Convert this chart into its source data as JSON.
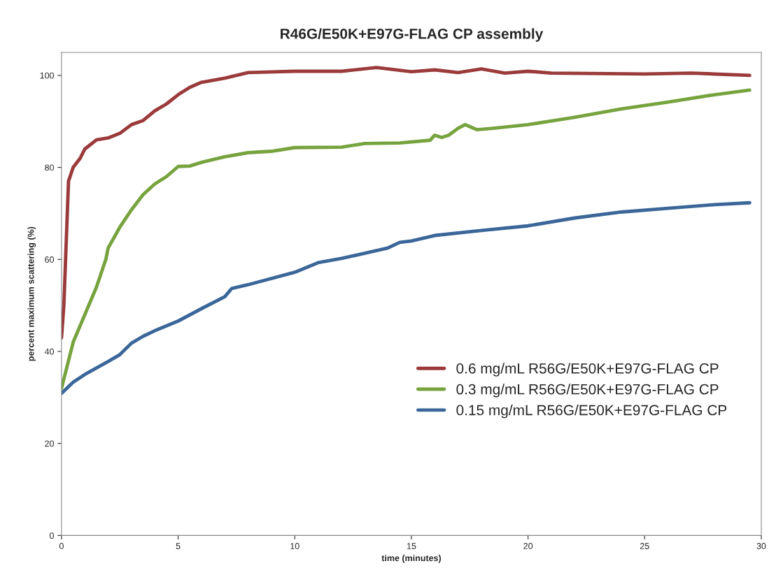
{
  "chart_data": {
    "type": "line",
    "title": "R46G/E50K+E97G-FLAG CP assembly",
    "xlabel": "time (minutes)",
    "ylabel": "percent maximum scattering (%)",
    "xlim": [
      0,
      30
    ],
    "xticks": [
      0,
      5,
      10,
      15,
      20,
      25,
      30
    ],
    "ylim": [
      0,
      105
    ],
    "yticks": [
      0,
      20,
      40,
      60,
      80,
      100
    ],
    "grid": false,
    "legend": "right",
    "marker": "none",
    "line_style": "solid",
    "series": [
      {
        "name": "0.6 mg/mL R56G/E50K+E97G-FLAG CP",
        "color": "#9b3a3a",
        "x": [
          0,
          0.1,
          0.3,
          0.5,
          0.8,
          1,
          1.5,
          2,
          2.5,
          3,
          3.5,
          4,
          4.5,
          5,
          5.5,
          6,
          7,
          8,
          10,
          12,
          13.5,
          15,
          16,
          17,
          18,
          19,
          20,
          21,
          25,
          27,
          29.5
        ],
        "values": [
          43,
          50,
          77,
          80,
          82,
          84,
          86,
          86.4,
          87.4,
          89.3,
          90.2,
          92.3,
          93.8,
          95.8,
          97.4,
          98.5,
          99.4,
          100.6,
          100.9,
          100.9,
          101.7,
          100.8,
          101.2,
          100.6,
          101.4,
          100.5,
          100.9,
          100.5,
          100.3,
          100.5,
          100
        ]
      },
      {
        "name": "0.3 mg/mL R56G/E50K+E97G-FLAG CP",
        "color": "#77a33e",
        "x": [
          0,
          0.5,
          1,
          1.5,
          1.9,
          2,
          2.5,
          3,
          3.5,
          4,
          4.5,
          5,
          5.5,
          6,
          7,
          8,
          9,
          10,
          12,
          13,
          14.5,
          15.8,
          16,
          16.3,
          16.6,
          17,
          17.3,
          17.8,
          18.5,
          20,
          22,
          24,
          26,
          28,
          29.5
        ],
        "values": [
          32,
          42,
          48,
          54,
          60,
          62.5,
          67,
          70.8,
          74.1,
          76.4,
          78,
          80.2,
          80.3,
          81.1,
          82.3,
          83.2,
          83.5,
          84.3,
          84.4,
          85.2,
          85.3,
          85.9,
          87,
          86.5,
          87,
          88.5,
          89.3,
          88.2,
          88.5,
          89.3,
          90.9,
          92.7,
          94.2,
          95.8,
          96.8
        ]
      },
      {
        "name": "0.15 mg/mL R56G/E50K+E97G-FLAG CP",
        "color": "#3a6699",
        "x": [
          0,
          0.5,
          1,
          2,
          2.5,
          3,
          3.5,
          4,
          5,
          6,
          7,
          7.3,
          8,
          10,
          11,
          12,
          14,
          14.5,
          15,
          16,
          18,
          20,
          22,
          24,
          26,
          28,
          29.5
        ],
        "values": [
          30.9,
          33.3,
          35,
          37.8,
          39.3,
          41.8,
          43.3,
          44.5,
          46.6,
          49.3,
          51.9,
          53.7,
          54.5,
          57.2,
          59.3,
          60.2,
          62.5,
          63.7,
          64,
          65.2,
          66.3,
          67.3,
          69,
          70.3,
          71.1,
          71.9,
          72.3
        ]
      }
    ]
  }
}
